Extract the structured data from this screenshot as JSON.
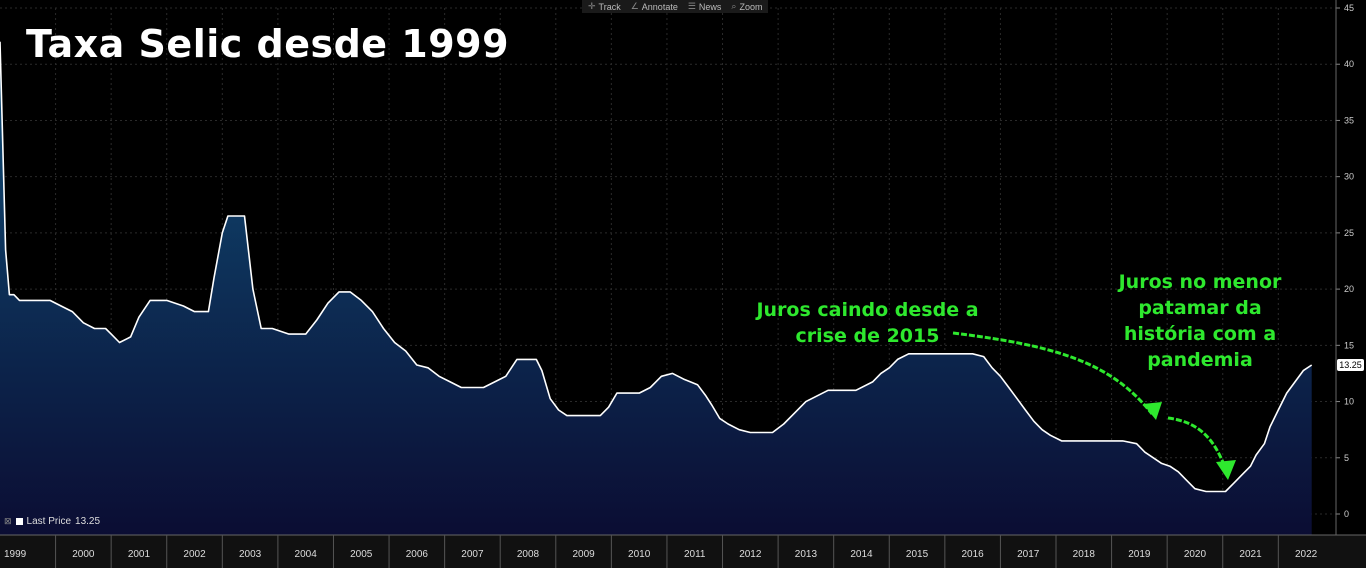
{
  "title": "Taxa Selic desde 1999",
  "toolbar": {
    "items": [
      {
        "icon": "crosshair-icon",
        "glyph": "✛",
        "label": "Track"
      },
      {
        "icon": "pencil-icon",
        "glyph": "∠",
        "label": "Annotate"
      },
      {
        "icon": "news-icon",
        "glyph": "☰",
        "label": "News"
      },
      {
        "icon": "zoom-icon",
        "glyph": "⌕",
        "label": "Zoom"
      }
    ]
  },
  "annotations": {
    "crisis": "Juros caindo desde a crise de 2015",
    "pandemic": "Juros no menor patamar da história com a pandemia"
  },
  "legend": {
    "toggle": "⊠",
    "label": "Last Price",
    "value": "13.25"
  },
  "last_value_badge": "13.25",
  "colors": {
    "line": "#ffffff",
    "fill_top": "#0f4f78",
    "fill_bottom": "#0b0d33",
    "grid": "#2a2a2a",
    "annotation": "#2ee82e"
  },
  "chart_data": {
    "type": "area",
    "title": "Taxa Selic desde 1999",
    "xlabel": "",
    "ylabel": "",
    "ylim": [
      0,
      45
    ],
    "xlim": [
      1999.0,
      2022.75
    ],
    "grid": true,
    "y_axis_position": "right",
    "y_ticks": [
      0,
      5,
      10,
      15,
      20,
      25,
      30,
      35,
      40,
      45
    ],
    "x_tick_labels": [
      "1999",
      "2000",
      "2001",
      "2002",
      "2003",
      "2004",
      "2005",
      "2006",
      "2007",
      "2008",
      "2009",
      "2010",
      "2011",
      "2012",
      "2013",
      "2014",
      "2015",
      "2016",
      "2017",
      "2018",
      "2019",
      "2020",
      "2021",
      "2022"
    ],
    "series": [
      {
        "name": "Last Price",
        "x": [
          1999.0,
          1999.1,
          1999.17,
          1999.25,
          1999.35,
          1999.45,
          1999.6,
          1999.9,
          2000.1,
          2000.3,
          2000.5,
          2000.7,
          2000.9,
          2001.0,
          2001.15,
          2001.35,
          2001.5,
          2001.7,
          2001.85,
          2002.0,
          2002.3,
          2002.5,
          2002.75,
          2002.85,
          2003.0,
          2003.1,
          2003.2,
          2003.4,
          2003.55,
          2003.7,
          2003.9,
          2004.2,
          2004.5,
          2004.7,
          2004.9,
          2005.1,
          2005.3,
          2005.5,
          2005.7,
          2005.9,
          2006.1,
          2006.3,
          2006.5,
          2006.7,
          2006.9,
          2007.1,
          2007.3,
          2007.5,
          2007.7,
          2007.9,
          2008.1,
          2008.3,
          2008.5,
          2008.65,
          2008.75,
          2008.9,
          2009.05,
          2009.2,
          2009.35,
          2009.5,
          2009.8,
          2009.95,
          2010.1,
          2010.3,
          2010.5,
          2010.7,
          2010.9,
          2011.1,
          2011.3,
          2011.55,
          2011.7,
          2011.8,
          2011.95,
          2012.1,
          2012.3,
          2012.5,
          2012.7,
          2012.9,
          2013.1,
          2013.3,
          2013.5,
          2013.7,
          2013.9,
          2014.1,
          2014.4,
          2014.7,
          2014.85,
          2015.0,
          2015.15,
          2015.35,
          2015.6,
          2015.9,
          2016.2,
          2016.5,
          2016.7,
          2016.85,
          2017.0,
          2017.15,
          2017.3,
          2017.45,
          2017.6,
          2017.75,
          2017.9,
          2018.1,
          2018.5,
          2018.9,
          2019.2,
          2019.45,
          2019.6,
          2019.75,
          2019.9,
          2020.05,
          2020.2,
          2020.35,
          2020.5,
          2020.7,
          2020.95,
          2021.05,
          2021.2,
          2021.35,
          2021.5,
          2021.6,
          2021.75,
          2021.85,
          2022.0,
          2022.15,
          2022.3,
          2022.45,
          2022.6
        ],
        "y": [
          42.0,
          23.5,
          19.5,
          19.5,
          19.0,
          19.0,
          19.0,
          19.0,
          18.5,
          18.0,
          17.0,
          16.5,
          16.5,
          16.0,
          15.25,
          15.75,
          17.5,
          19.0,
          19.0,
          19.0,
          18.5,
          18.0,
          18.0,
          21.0,
          25.0,
          26.5,
          26.5,
          26.5,
          20.0,
          16.5,
          16.5,
          16.0,
          16.0,
          17.25,
          18.75,
          19.75,
          19.75,
          19.0,
          18.0,
          16.5,
          15.25,
          14.5,
          13.25,
          13.0,
          12.25,
          11.75,
          11.25,
          11.25,
          11.25,
          11.75,
          12.25,
          13.75,
          13.75,
          13.75,
          12.75,
          10.25,
          9.25,
          8.75,
          8.75,
          8.75,
          8.75,
          9.5,
          10.75,
          10.75,
          10.75,
          11.25,
          12.25,
          12.5,
          12.0,
          11.5,
          10.5,
          9.75,
          8.5,
          8.0,
          7.5,
          7.25,
          7.25,
          7.25,
          8.0,
          9.0,
          10.0,
          10.5,
          11.0,
          11.0,
          11.0,
          11.75,
          12.5,
          13.0,
          13.75,
          14.25,
          14.25,
          14.25,
          14.25,
          14.25,
          14.0,
          13.0,
          12.25,
          11.25,
          10.25,
          9.25,
          8.25,
          7.5,
          7.0,
          6.5,
          6.5,
          6.5,
          6.5,
          6.25,
          5.5,
          5.0,
          4.5,
          4.25,
          3.75,
          3.0,
          2.25,
          2.0,
          2.0,
          2.0,
          2.75,
          3.5,
          4.25,
          5.25,
          6.25,
          7.75,
          9.25,
          10.75,
          11.75,
          12.75,
          13.25
        ]
      }
    ]
  }
}
